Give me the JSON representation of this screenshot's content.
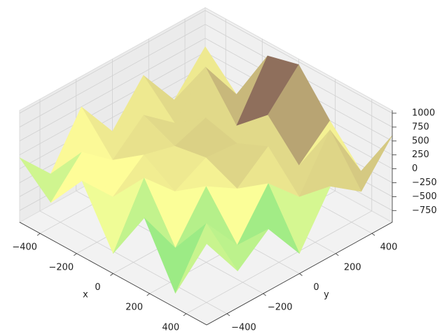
{
  "chart_data": {
    "type": "surface",
    "x_label": "x",
    "y_label": "y",
    "colormap": "terrain",
    "x": [
      -512,
      -341,
      -171,
      0,
      171,
      341,
      512
    ],
    "y": [
      -512,
      -341,
      -171,
      0,
      171,
      341,
      512
    ],
    "z": [
      [
        200,
        -300,
        400,
        -600,
        350,
        -700,
        500
      ],
      [
        -400,
        300,
        -200,
        450,
        -500,
        250,
        -300
      ],
      [
        500,
        -150,
        250,
        -100,
        300,
        -450,
        150
      ],
      [
        -250,
        350,
        100,
        200,
        -50,
        350,
        -600
      ],
      [
        450,
        -100,
        300,
        150,
        400,
        -200,
        300
      ],
      [
        -300,
        600,
        -150,
        350,
        -250,
        700,
        -100
      ],
      [
        350,
        -200,
        800,
        950,
        250,
        -350,
        600
      ]
    ],
    "xlim": [
      -512,
      512
    ],
    "ylim": [
      -512,
      512
    ],
    "zlim": [
      -960,
      1050
    ],
    "xticks": [
      {
        "value": -400,
        "label": "−400"
      },
      {
        "value": -200,
        "label": "−200"
      },
      0,
      200,
      400
    ],
    "yticks": [
      {
        "value": -400,
        "label": "−400"
      },
      {
        "value": -200,
        "label": "−200"
      },
      0,
      200,
      400
    ],
    "zticks": [
      {
        "value": -750,
        "label": "−750"
      },
      {
        "value": -500,
        "label": "−500"
      },
      {
        "value": -250,
        "label": "−250"
      },
      0,
      250,
      500,
      750,
      1000
    ],
    "grid": true
  }
}
